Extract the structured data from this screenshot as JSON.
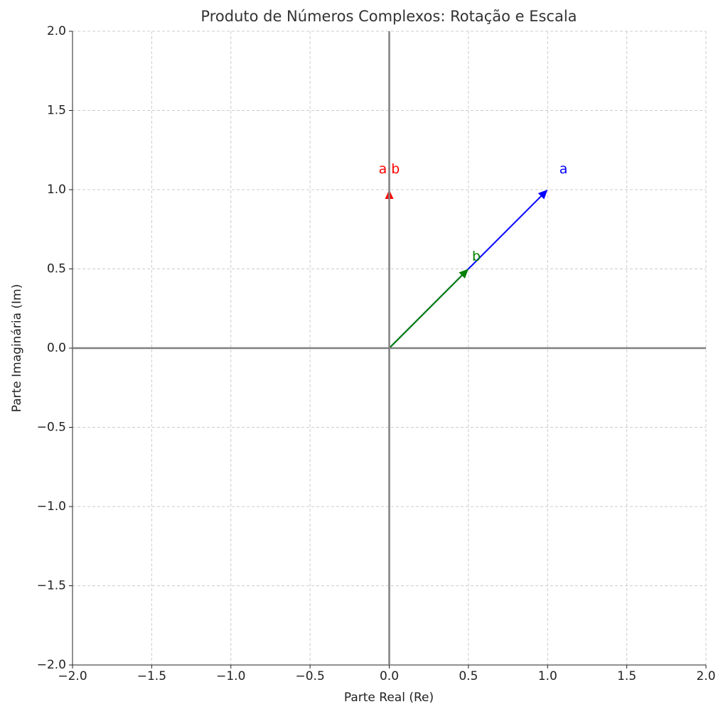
{
  "chart_data": {
    "type": "quiver",
    "title": "Produto de Números Complexos: Rotação e Escala",
    "xlabel": "Parte Real (Re)",
    "ylabel": "Parte Imaginária (Im)",
    "vectors": [
      {
        "name": "a",
        "color": "#0000ff",
        "x": 1,
        "y": 1
      },
      {
        "name": "b",
        "color": "#008000",
        "x": 0.5,
        "y": 0.5
      },
      {
        "name": "a·b",
        "color": "#ff0000",
        "x": 0,
        "y": 1
      }
    ],
    "xlim": [
      -2,
      2
    ],
    "ylim": [
      -2,
      2
    ],
    "xticks": [
      {
        "value": -2,
        "label": "−2.0"
      },
      {
        "value": -1.5,
        "label": "−1.5"
      },
      {
        "value": -1,
        "label": "−1.0"
      },
      {
        "value": -0.5,
        "label": "−0.5"
      },
      {
        "value": 0,
        "label": "0.0"
      },
      0.5,
      {
        "value": 1,
        "label": "1.0"
      },
      1.5,
      {
        "value": 2,
        "label": "2.0"
      }
    ],
    "yticks": [
      {
        "value": -2,
        "label": "−2.0"
      },
      {
        "value": -1.5,
        "label": "−1.5"
      },
      {
        "value": -1,
        "label": "−1.0"
      },
      {
        "value": -0.5,
        "label": "−0.5"
      },
      {
        "value": 0,
        "label": "0.0"
      },
      0.5,
      {
        "value": 1,
        "label": "1.0"
      },
      1.5,
      {
        "value": 2,
        "label": "2.0"
      }
    ],
    "grid": true
  }
}
